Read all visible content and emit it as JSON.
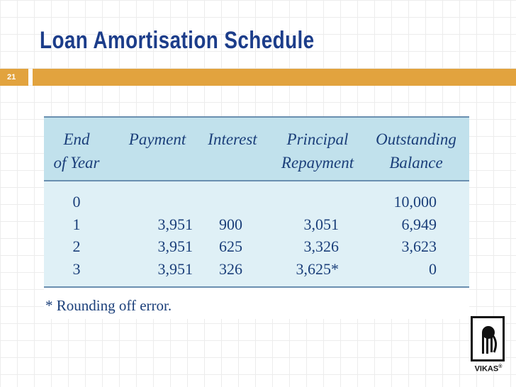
{
  "slide": {
    "title": "Loan Amortisation Schedule",
    "number": "21"
  },
  "table": {
    "headers": [
      {
        "line1": "End",
        "line2": "of Year"
      },
      {
        "line1": "Payment",
        "line2": ""
      },
      {
        "line1": "Interest",
        "line2": ""
      },
      {
        "line1": "Principal",
        "line2": "Repayment"
      },
      {
        "line1": "Outstanding",
        "line2": "Balance"
      }
    ],
    "rows": [
      {
        "year": "0",
        "payment": "",
        "interest": "",
        "principal": "",
        "balance": "10,000"
      },
      {
        "year": "1",
        "payment": "3,951",
        "interest": "900",
        "principal": "3,051",
        "balance": "6,949"
      },
      {
        "year": "2",
        "payment": "3,951",
        "interest": "625",
        "principal": "3,326",
        "balance": "3,623"
      },
      {
        "year": "3",
        "payment": "3,951",
        "interest": "326",
        "principal": "3,625*",
        "balance": "0"
      }
    ],
    "footnote": "* Rounding off error."
  },
  "logo": {
    "text": "VIKAS",
    "mark": "®"
  },
  "colors": {
    "title": "#1c3d8a",
    "accent_bar": "#e2a33e",
    "header_bg": "#c1e1ec",
    "body_bg": "#dff0f6",
    "table_text": "#1b3f7a"
  }
}
